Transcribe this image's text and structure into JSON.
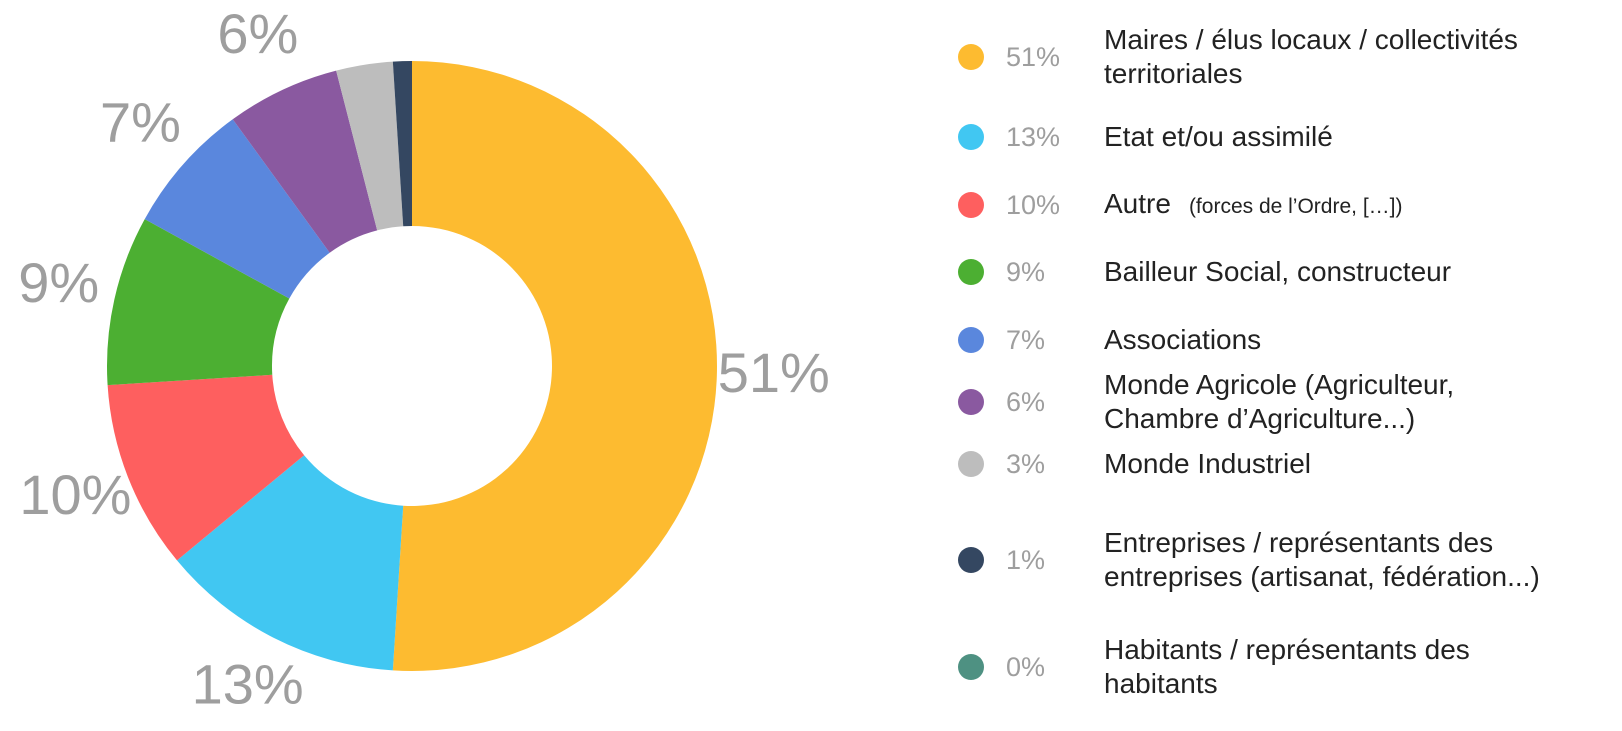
{
  "chart_data": {
    "type": "donut",
    "categories": [
      "Maires / élus locaux / collectivités territoriales",
      "Etat et/ou assimilé",
      "Autre",
      "Bailleur Social, constructeur",
      "Associations",
      "Monde Agricole (Agriculteur, Chambre d’Agriculture...)",
      "Monde Industriel",
      "Entreprises / représentants des entreprises (artisanat, fédération...)",
      "Habitants / représentants des habitants"
    ],
    "values": [
      51,
      13,
      10,
      9,
      7,
      6,
      3,
      1,
      0
    ],
    "value_labels": [
      "51%",
      "13%",
      "10%",
      "9%",
      "7%",
      "6%",
      "3%",
      "1%",
      "0%"
    ],
    "slice_labels": [
      "51%",
      "13%",
      "10%",
      "9%",
      "7%",
      "6%",
      null,
      null,
      null
    ],
    "colors": [
      "#fdbb30",
      "#41c7f2",
      "#fe5f5f",
      "#4caf32",
      "#5a87dd",
      "#8a59a0",
      "#bdbdbd",
      "#344761",
      "#4e9182"
    ],
    "annotation": "(forces de l’Ordre, […])"
  }
}
